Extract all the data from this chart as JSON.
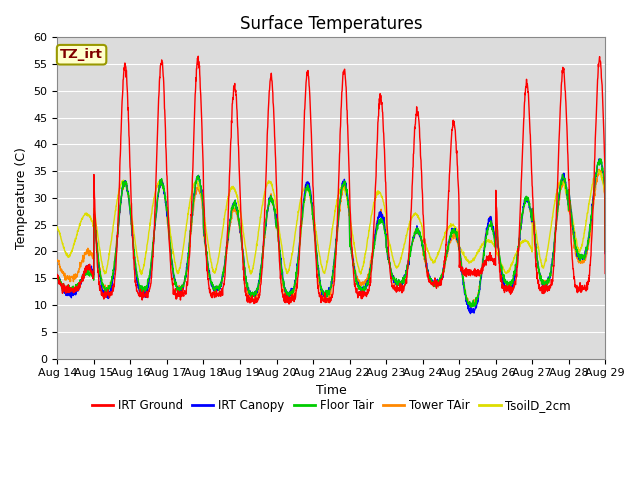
{
  "title": "Surface Temperatures",
  "xlabel": "Time",
  "ylabel": "Temperature (C)",
  "ylim": [
    0,
    60
  ],
  "yticks": [
    0,
    5,
    10,
    15,
    20,
    25,
    30,
    35,
    40,
    45,
    50,
    55,
    60
  ],
  "date_labels": [
    "Aug 14",
    "Aug 15",
    "Aug 16",
    "Aug 17",
    "Aug 18",
    "Aug 19",
    "Aug 20",
    "Aug 21",
    "Aug 22",
    "Aug 23",
    "Aug 24",
    "Aug 25",
    "Aug 26",
    "Aug 27",
    "Aug 28",
    "Aug 29"
  ],
  "annotation_text": "TZ_irt",
  "annotation_color": "#800000",
  "annotation_bg": "#ffffcc",
  "annotation_border": "#999900",
  "series_colors": {
    "IRT Ground": "#ff0000",
    "IRT Canopy": "#0000ff",
    "Floor Tair": "#00cc00",
    "Tower TAir": "#ff8800",
    "TsoilD_2cm": "#dddd00"
  },
  "fig_bg": "#ffffff",
  "plot_bg": "#dcdcdc",
  "title_fontsize": 12,
  "axis_fontsize": 9,
  "tick_fontsize": 8
}
